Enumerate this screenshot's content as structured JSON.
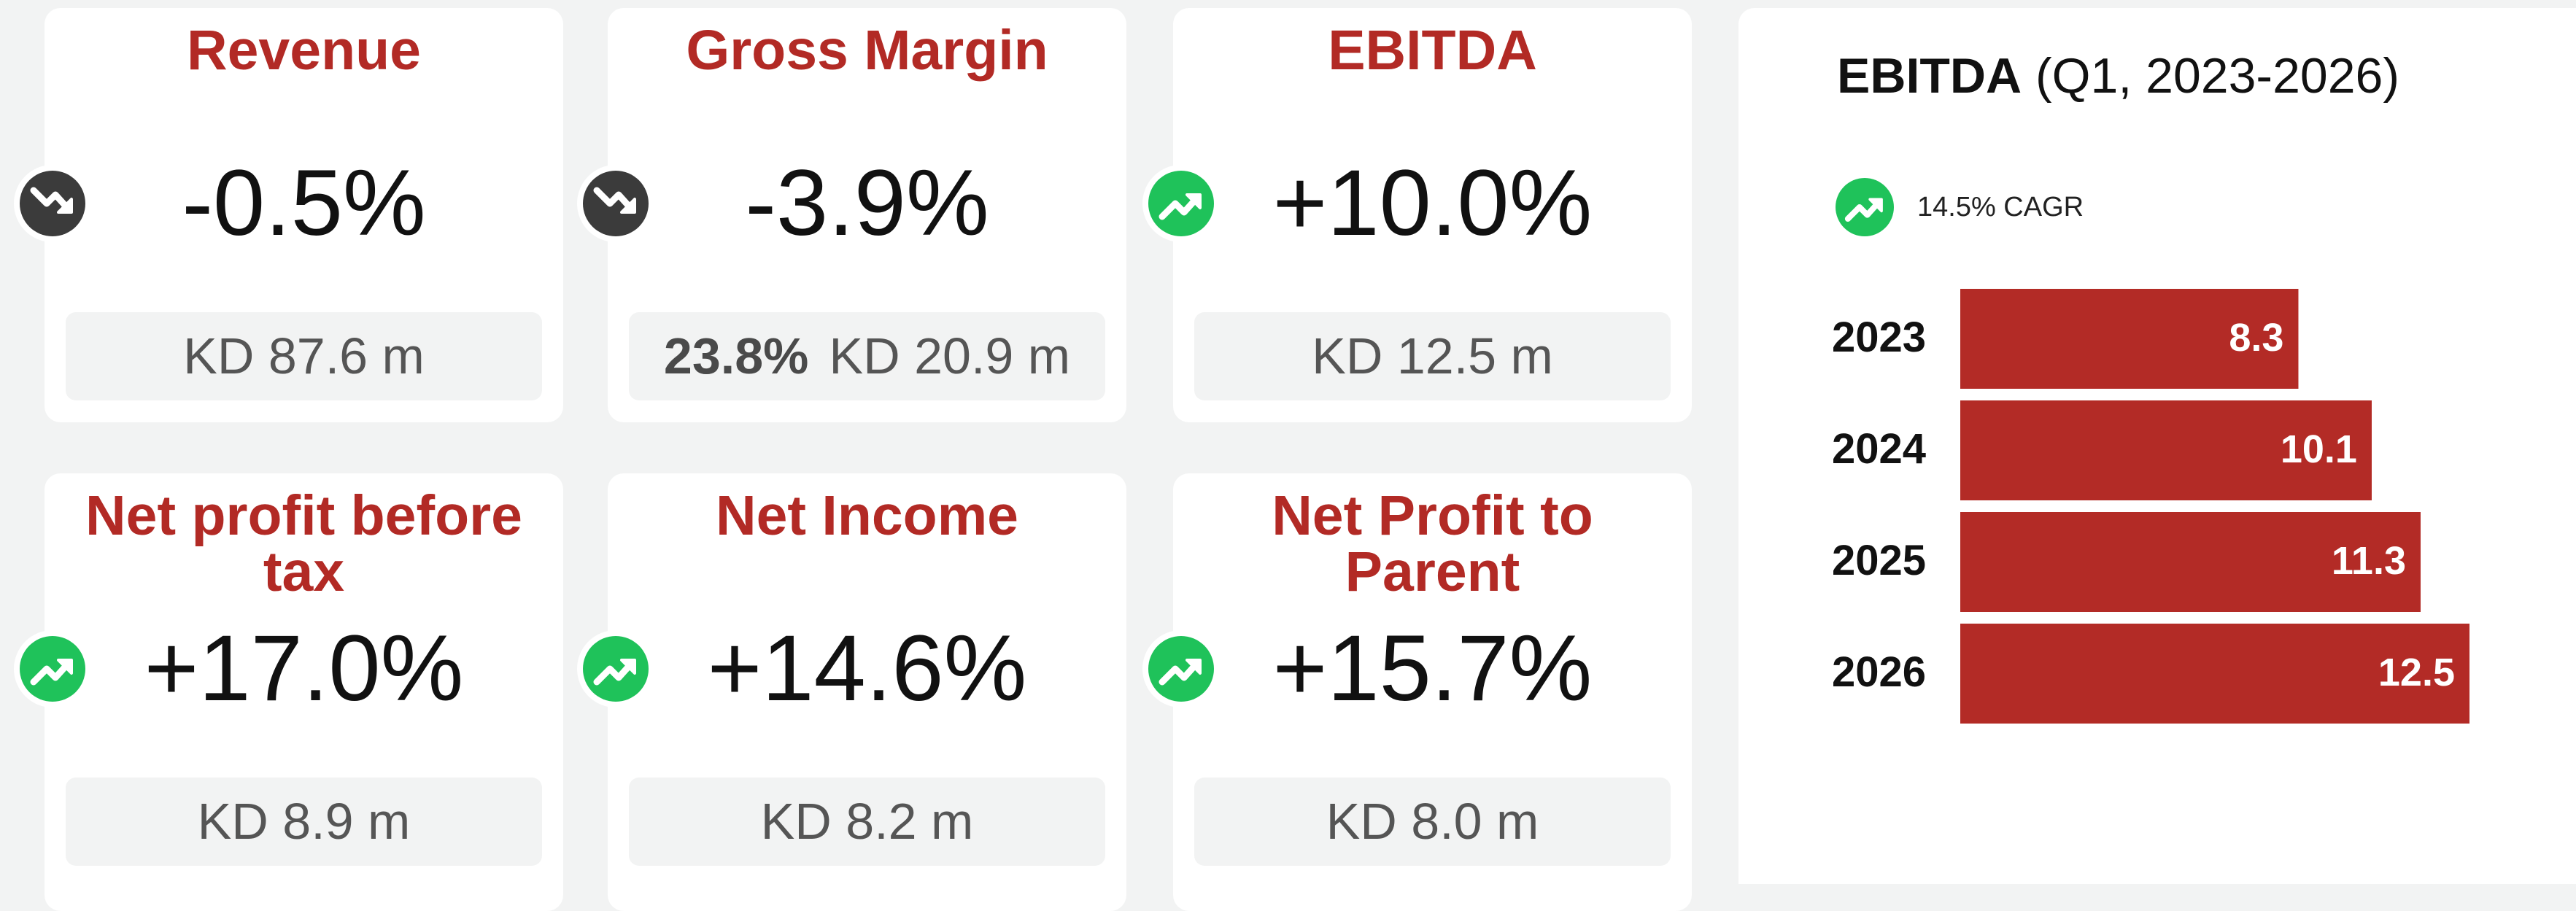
{
  "cards": [
    {
      "title": "Revenue",
      "value": "-0.5%",
      "detail": "KD 87.6 m",
      "trend": "down"
    },
    {
      "title": "Gross Margin",
      "value": "-3.9%",
      "detail_bold": "23.8%",
      "detail": "KD 20.9 m",
      "trend": "down"
    },
    {
      "title": "EBITDA",
      "value": "+10.0%",
      "detail": "KD 12.5 m",
      "trend": "up"
    },
    {
      "title": "Net profit before tax",
      "value": "+17.0%",
      "detail": "KD 8.9 m",
      "trend": "up"
    },
    {
      "title": "Net Income",
      "value": "+14.6%",
      "detail": "KD 8.2 m",
      "trend": "up"
    },
    {
      "title": "Net Profit to Parent",
      "value": "+15.7%",
      "detail": "KD 8.0 m",
      "trend": "up"
    }
  ],
  "chart_data": {
    "type": "bar",
    "orientation": "horizontal",
    "title": "EBITDA",
    "subtitle": "(Q1, 2023-2026)",
    "annotation": "14.5% CAGR",
    "annotation_trend": "up",
    "categories": [
      "2023",
      "2024",
      "2025",
      "2026"
    ],
    "values": [
      8.3,
      10.1,
      11.3,
      12.5
    ],
    "color": "#b32b26",
    "xlim": [
      0,
      12.5
    ]
  }
}
